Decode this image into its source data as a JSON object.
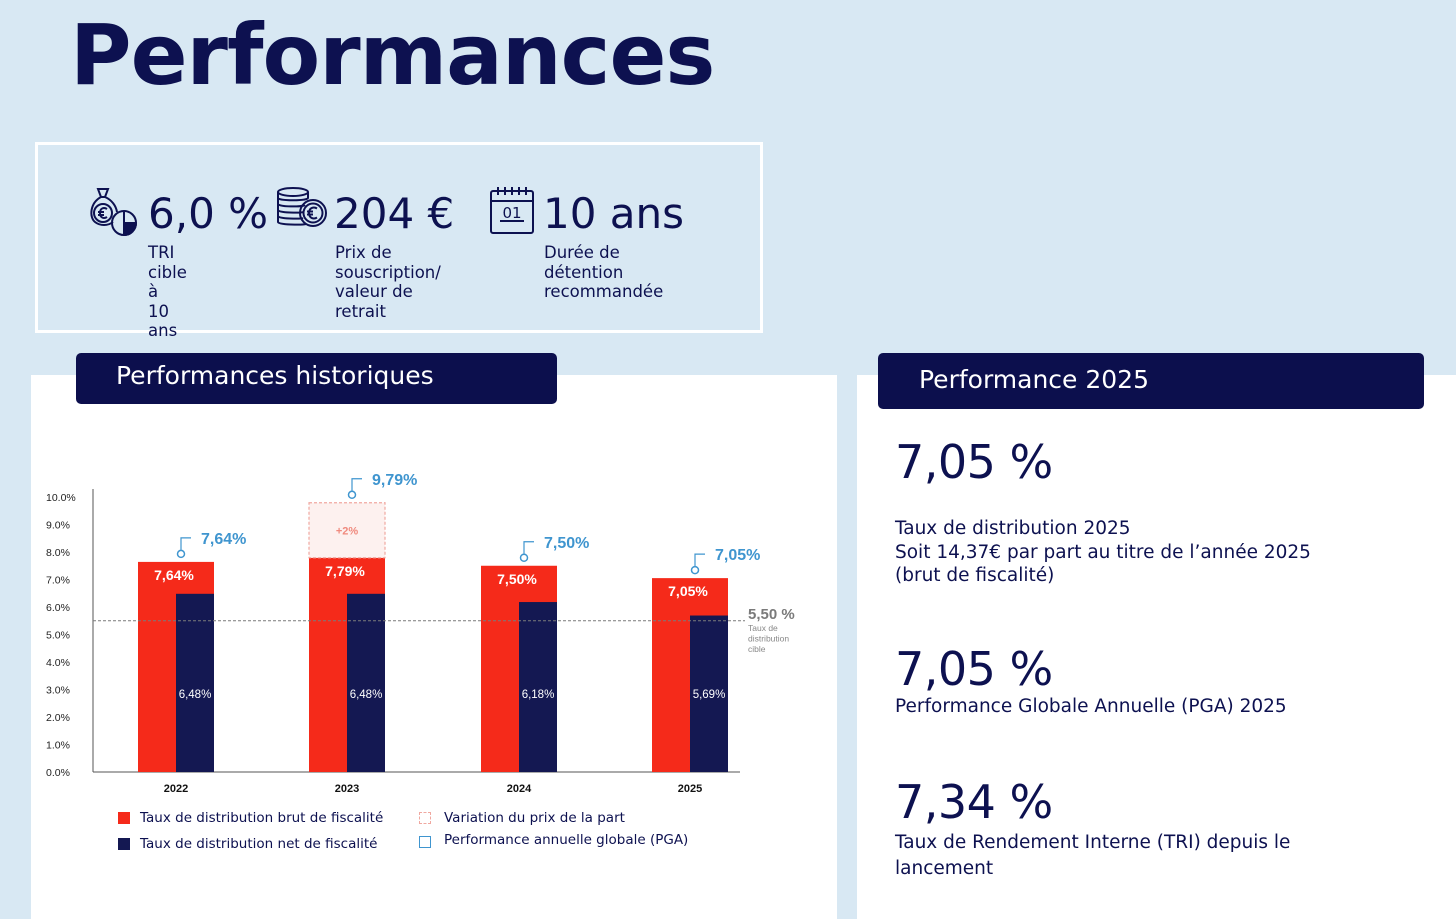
{
  "page_title": "Performances",
  "kpis": [
    {
      "icon": "money-bag-pie-icon",
      "value": "6,0 %",
      "label": "TRI cible à\n10 ans"
    },
    {
      "icon": "coins-stack-euro-icon",
      "value": "204 €",
      "label": "Prix de\nsouscription/\nvaleur de retrait"
    },
    {
      "icon": "calendar-icon",
      "value": "10 ans",
      "label": "Durée de\ndétention\nrecommandée"
    }
  ],
  "calendar_day": "01",
  "left_panel": {
    "title": "Performances historiques"
  },
  "right_panel": {
    "title": "Performance 2025",
    "stats": [
      {
        "value": "7,05 %",
        "text": "Taux de distribution 2025\nSoit 14,37€ par part au titre de l’année 2025\n(brut de fiscalité)"
      },
      {
        "value": "7,05 %",
        "text": "Performance Globale Annuelle (PGA) 2025"
      },
      {
        "value": "7,34 %",
        "text": "Taux de Rendement Interne (TRI) depuis le\nlancement"
      }
    ]
  },
  "colors": {
    "gross": "#f52a1a",
    "net": "#141852",
    "pga": "#3f95cf",
    "variation": "#f0a8a0",
    "target": "#7a7a7a"
  },
  "chart_data": {
    "type": "bar",
    "categories": [
      "2022",
      "2023",
      "2024",
      "2025"
    ],
    "series": [
      {
        "name": "Taux de distribution brut de fiscalité",
        "values": [
          7.64,
          7.79,
          7.5,
          7.05
        ],
        "labels": [
          "7,64%",
          "7,79%",
          "7,50%",
          "7,05%"
        ]
      },
      {
        "name": "Taux de distribution net de fiscalité",
        "values": [
          6.48,
          6.48,
          6.18,
          5.69
        ],
        "labels": [
          "6,48%",
          "6,48%",
          "6,18%",
          "5,69%"
        ]
      },
      {
        "name": "Variation du prix de la part",
        "values": [
          0,
          2,
          0,
          0
        ],
        "labels": [
          "",
          "+2%",
          "",
          ""
        ]
      },
      {
        "name": "Performance annuelle globale (PGA)",
        "values": [
          7.64,
          9.79,
          7.5,
          7.05
        ],
        "labels": [
          "7,64%",
          "9,79%",
          "7,50%",
          "7,05%"
        ]
      }
    ],
    "y_ticks": [
      "10.0%",
      "9.0%",
      "8.0%",
      "7.0%",
      "6.0%",
      "5.0%",
      "4.0%",
      "3.0%",
      "2.0%",
      "1.0%",
      "0.0%"
    ],
    "ylim": [
      0,
      10
    ],
    "target_line": {
      "value": 5.5,
      "label": "5,50 %",
      "caption": [
        "Taux de",
        "distribution",
        "cible"
      ]
    },
    "legend": [
      {
        "label": "Taux de distribution brut de fiscalité",
        "swatch": "gross"
      },
      {
        "label": "Variation du prix de la part",
        "swatch": "variation"
      },
      {
        "label": "Taux de distribution net de fiscalité",
        "swatch": "net"
      },
      {
        "label": "Performance annuelle globale (PGA)",
        "swatch": "pga"
      }
    ]
  }
}
